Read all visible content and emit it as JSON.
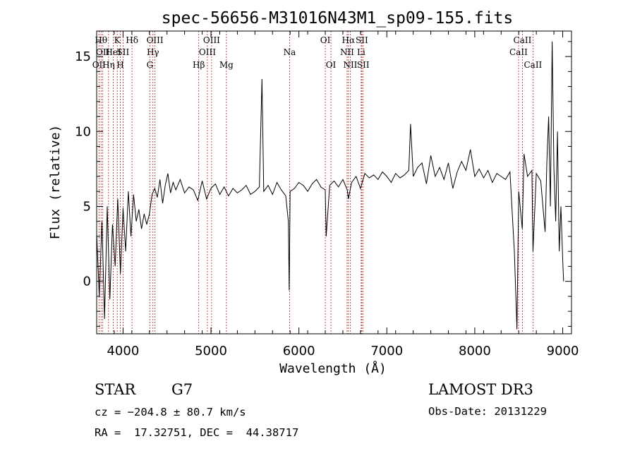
{
  "chart_data": {
    "type": "line",
    "title": "spec-56656-M31016N43M1_sp09-155.fits",
    "xlabel": "Wavelength (Å)",
    "ylabel": "Flux (relative)",
    "xlim": [
      3700,
      9100
    ],
    "ylim": [
      -3.5,
      16.7
    ],
    "xticks": [
      4000,
      5000,
      6000,
      7000,
      8000,
      9000
    ],
    "yticks": [
      0,
      5,
      10,
      15
    ],
    "series": [
      {
        "name": "flux",
        "x": [
          3700,
          3730,
          3760,
          3790,
          3820,
          3850,
          3880,
          3910,
          3940,
          3970,
          4000,
          4030,
          4060,
          4090,
          4120,
          4150,
          4180,
          4210,
          4240,
          4270,
          4300,
          4330,
          4360,
          4390,
          4420,
          4450,
          4480,
          4510,
          4540,
          4570,
          4600,
          4650,
          4700,
          4750,
          4800,
          4850,
          4900,
          4950,
          5000,
          5050,
          5100,
          5150,
          5200,
          5250,
          5300,
          5350,
          5400,
          5450,
          5500,
          5550,
          5580,
          5600,
          5650,
          5700,
          5750,
          5800,
          5850,
          5880,
          5890,
          5900,
          5950,
          6000,
          6050,
          6100,
          6150,
          6200,
          6250,
          6300,
          6310,
          6350,
          6400,
          6450,
          6500,
          6550,
          6563,
          6600,
          6650,
          6700,
          6750,
          6800,
          6850,
          6900,
          6950,
          7000,
          7050,
          7100,
          7150,
          7200,
          7250,
          7270,
          7300,
          7350,
          7400,
          7450,
          7500,
          7550,
          7600,
          7650,
          7700,
          7750,
          7800,
          7850,
          7900,
          7950,
          8000,
          8050,
          8100,
          8150,
          8200,
          8250,
          8300,
          8350,
          8400,
          8450,
          8480,
          8500,
          8540,
          8560,
          8600,
          8650,
          8662,
          8700,
          8750,
          8800,
          8820,
          8840,
          8860,
          8880,
          8900,
          8920,
          8940,
          8960,
          8980,
          9000,
          9010
        ],
        "values": [
          3.2,
          -1.0,
          4.0,
          -2.5,
          5.0,
          -1.2,
          3.8,
          1.0,
          5.5,
          0.5,
          4.9,
          2.0,
          6.0,
          3.0,
          5.8,
          4.0,
          4.8,
          3.5,
          4.5,
          3.8,
          4.5,
          5.8,
          6.2,
          5.6,
          6.8,
          5.2,
          6.4,
          7.2,
          5.9,
          6.6,
          6.1,
          6.8,
          5.9,
          6.3,
          6.1,
          5.4,
          6.7,
          5.5,
          6.2,
          6.5,
          5.8,
          6.3,
          5.7,
          6.2,
          5.9,
          6.1,
          6.4,
          5.8,
          6.0,
          6.3,
          13.5,
          6.0,
          6.4,
          5.8,
          6.6,
          6.1,
          5.7,
          4.0,
          -0.6,
          6.0,
          6.2,
          6.6,
          6.4,
          6.0,
          6.5,
          6.8,
          6.3,
          6.1,
          3.0,
          6.4,
          6.7,
          6.3,
          6.8,
          6.1,
          5.5,
          6.6,
          7.0,
          6.2,
          7.2,
          6.9,
          7.1,
          6.8,
          7.3,
          7.0,
          6.6,
          7.2,
          6.9,
          7.1,
          7.4,
          10.5,
          7.0,
          7.6,
          7.9,
          6.5,
          8.4,
          7.0,
          7.6,
          6.8,
          7.9,
          6.2,
          7.3,
          8.0,
          7.4,
          8.8,
          7.0,
          7.5,
          6.9,
          7.4,
          6.6,
          7.2,
          7.0,
          6.8,
          7.3,
          2.0,
          -3.2,
          6.0,
          3.5,
          8.5,
          7.0,
          7.4,
          2.0,
          7.2,
          6.7,
          3.3,
          8.0,
          11.0,
          5.0,
          16.0,
          7.5,
          4.0,
          10.0,
          2.0,
          5.0,
          1.5,
          0.0
        ]
      }
    ],
    "lines": [
      {
        "label": "OII",
        "wavelength": 3727,
        "row": 3
      },
      {
        "label": "Hθ",
        "wavelength": 3750,
        "row": 1
      },
      {
        "label": "OII",
        "wavelength": 3770,
        "row": 2
      },
      {
        "label": "Hη",
        "wavelength": 3835,
        "row": 3
      },
      {
        "label": "HeI",
        "wavelength": 3889,
        "row": 2
      },
      {
        "label": "K",
        "wavelength": 3934,
        "row": 1
      },
      {
        "label": "H",
        "wavelength": 3969,
        "row": 3
      },
      {
        "label": "SII",
        "wavelength": 4000,
        "row": 2
      },
      {
        "label": "Hδ",
        "wavelength": 4102,
        "row": 1
      },
      {
        "label": "OIII",
        "wavelength": 4363,
        "row": 1
      },
      {
        "label": "Hγ",
        "wavelength": 4340,
        "row": 2
      },
      {
        "label": "G",
        "wavelength": 4305,
        "row": 3
      },
      {
        "label": "Hβ",
        "wavelength": 4861,
        "row": 3
      },
      {
        "label": "OIII",
        "wavelength": 4959,
        "row": 2
      },
      {
        "label": "OIII",
        "wavelength": 5007,
        "row": 1
      },
      {
        "label": "Mg",
        "wavelength": 5175,
        "row": 3
      },
      {
        "label": "Na",
        "wavelength": 5894,
        "row": 2
      },
      {
        "label": "OI",
        "wavelength": 6300,
        "row": 1
      },
      {
        "label": "OI",
        "wavelength": 6364,
        "row": 3
      },
      {
        "label": "NII",
        "wavelength": 6548,
        "row": 2
      },
      {
        "label": "Hα",
        "wavelength": 6563,
        "row": 1
      },
      {
        "label": "NII",
        "wavelength": 6584,
        "row": 3
      },
      {
        "label": "SII",
        "wavelength": 6716,
        "row": 1
      },
      {
        "label": "Li",
        "wavelength": 6708,
        "row": 2
      },
      {
        "label": "SII",
        "wavelength": 6731,
        "row": 3
      },
      {
        "label": "CaII",
        "wavelength": 8498,
        "row": 2
      },
      {
        "label": "CaII",
        "wavelength": 8542,
        "row": 1
      },
      {
        "label": "CaII",
        "wavelength": 8662,
        "row": 3
      }
    ]
  },
  "info": {
    "object_class": "STAR",
    "subclass": "G7",
    "cz": "cz = −204.8 ± 80.7 km/s",
    "radec": "RA =  17.32751, DEC =  44.38717",
    "survey": "LAMOST DR3",
    "obs_date": "Obs-Date: 20131229"
  },
  "colors": {
    "line": "#000000",
    "marker": "#b22222"
  }
}
